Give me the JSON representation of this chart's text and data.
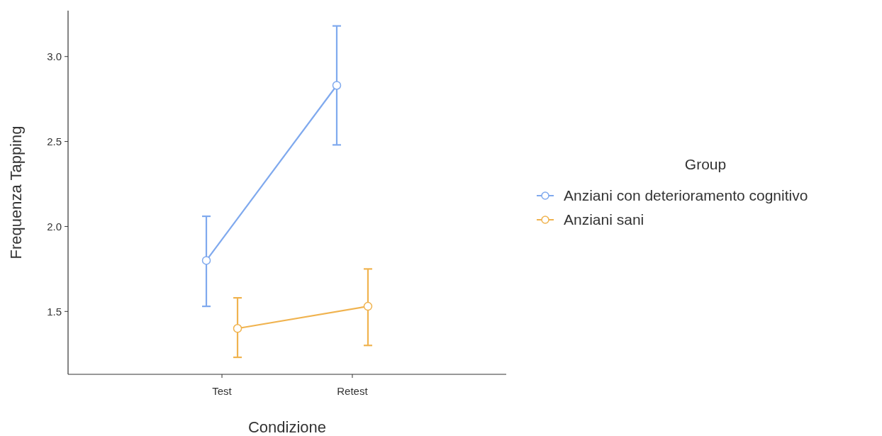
{
  "chart_data": {
    "type": "line",
    "xlabel": "Condizione",
    "ylabel": "Frequenza Tapping",
    "legend_title": "Group",
    "categories": [
      "Test",
      "Retest"
    ],
    "series": [
      {
        "name": "Anziani con deterioramento cognitivo",
        "color": "#7fa9ee",
        "values": [
          1.8,
          2.83
        ],
        "errors": [
          [
            1.53,
            2.06
          ],
          [
            2.48,
            3.18
          ]
        ]
      },
      {
        "name": "Anziani sani",
        "color": "#f0b34f",
        "values": [
          1.4,
          1.53
        ],
        "errors": [
          [
            1.23,
            1.58
          ],
          [
            1.3,
            1.75
          ]
        ]
      }
    ],
    "ylim": [
      1.13,
      3.27
    ],
    "yticks": [
      {
        "value": 1.5,
        "label": "1.5"
      },
      {
        "value": 2,
        "label": "2.0"
      },
      {
        "value": 2.5,
        "label": "2.5"
      },
      {
        "value": 3,
        "label": "3.0"
      }
    ],
    "grid": false,
    "legend": "right",
    "marker": "circle",
    "line_style": "solid"
  }
}
